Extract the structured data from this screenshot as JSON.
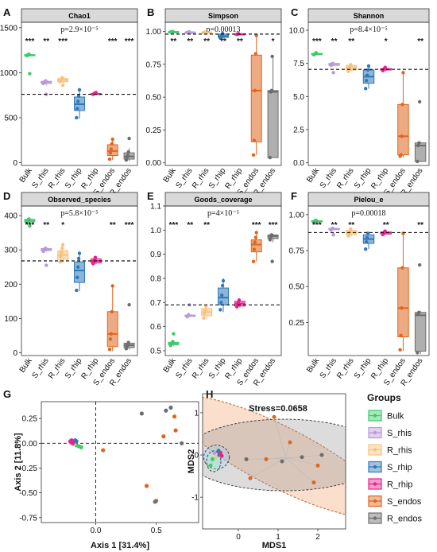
{
  "colors": {
    "Bulk": "#3ec96b",
    "S_rhis": "#b79bd9",
    "R_rhis": "#f8c27e",
    "S_rhip": "#2f78b9",
    "R_rhip": "#e8228b",
    "S_endos": "#e0651e",
    "R_endos": "#6d6d6d"
  },
  "groups": [
    "Bulk",
    "S_rhis",
    "R_rhis",
    "S_rhip",
    "R_rhip",
    "S_endos",
    "R_endos"
  ],
  "legend": {
    "title": "Groups"
  },
  "chart_data": [
    {
      "letter": "A",
      "type": "box",
      "title": "Chao1",
      "pvalue": "p=2.9×10⁻⁵",
      "ylim": [
        -30,
        1560
      ],
      "ticks": [
        0,
        500,
        1000,
        1500
      ],
      "hline": 760,
      "sig": [
        "***",
        "**",
        "***",
        "",
        "",
        "***",
        "***"
      ],
      "boxes": [
        {
          "min": 1180,
          "q1": 1190,
          "median": 1195,
          "q3": 1200,
          "max": 1210,
          "points": [
            1190,
            1195,
            1200,
            1205,
            990
          ]
        },
        {
          "min": 860,
          "q1": 880,
          "median": 895,
          "q3": 905,
          "max": 920,
          "points": [
            880,
            890,
            900,
            910,
            760
          ]
        },
        {
          "min": 880,
          "q1": 900,
          "median": 920,
          "q3": 935,
          "max": 960,
          "points": [
            900,
            915,
            930,
            945,
            860
          ]
        },
        {
          "min": 490,
          "q1": 580,
          "median": 650,
          "q3": 730,
          "max": 820,
          "points": [
            500,
            600,
            680,
            740,
            810
          ]
        },
        {
          "min": 760,
          "q1": 760,
          "median": 765,
          "q3": 770,
          "max": 780,
          "points": [
            760,
            765,
            770,
            775,
            780
          ]
        },
        {
          "min": 30,
          "q1": 80,
          "median": 130,
          "q3": 200,
          "max": 280,
          "points": [
            40,
            110,
            150,
            210,
            260
          ]
        },
        {
          "min": 20,
          "q1": 40,
          "median": 70,
          "q3": 110,
          "max": 160,
          "points": [
            30,
            60,
            80,
            120,
            270
          ]
        }
      ]
    },
    {
      "letter": "B",
      "type": "box",
      "title": "Simpson",
      "pvalue": "p=0.00013",
      "ylim": [
        -0.02,
        1.07
      ],
      "ticks": [
        0.0,
        0.25,
        0.5,
        0.75,
        1.0
      ],
      "hline": 0.98,
      "sig": [
        "**",
        "**",
        "**",
        "**",
        "**",
        "",
        "*"
      ],
      "boxes": [
        {
          "min": 0.995,
          "q1": 0.996,
          "median": 0.997,
          "q3": 0.998,
          "max": 0.999,
          "points": [
            0.996,
            0.997,
            0.998,
            0.999
          ]
        },
        {
          "min": 0.99,
          "q1": 0.992,
          "median": 0.994,
          "q3": 0.995,
          "max": 0.996,
          "points": [
            0.992,
            0.994,
            0.995,
            0.996
          ]
        },
        {
          "min": 0.99,
          "q1": 0.991,
          "median": 0.993,
          "q3": 0.995,
          "max": 0.996,
          "points": [
            0.991,
            0.993,
            0.995
          ]
        },
        {
          "min": 0.94,
          "q1": 0.955,
          "median": 0.965,
          "q3": 0.98,
          "max": 0.99,
          "points": [
            0.95,
            0.96,
            0.97,
            0.985
          ]
        },
        {
          "min": 0.975,
          "q1": 0.978,
          "median": 0.98,
          "q3": 0.982,
          "max": 0.985,
          "points": [
            0.977,
            0.98,
            0.983
          ]
        },
        {
          "min": 0.06,
          "q1": 0.16,
          "median": 0.55,
          "q3": 0.82,
          "max": 0.97,
          "points": [
            0.06,
            0.17,
            0.55,
            0.83,
            0.97
          ]
        },
        {
          "min": 0.04,
          "q1": 0.04,
          "median": 0.54,
          "q3": 0.55,
          "max": 0.81,
          "points": [
            0.04,
            0.54,
            0.55,
            0.81
          ]
        }
      ]
    },
    {
      "letter": "C",
      "type": "box",
      "title": "Shannon",
      "pvalue": "p=8.4×10⁻⁵",
      "ylim": [
        -0.2,
        10.6
      ],
      "ticks": [
        0.0,
        2.5,
        5.0,
        7.5,
        10.0
      ],
      "hline": 7.05,
      "sig": [
        "***",
        "**",
        "**",
        "",
        "*",
        "",
        "**"
      ],
      "boxes": [
        {
          "min": 8.1,
          "q1": 8.15,
          "median": 8.2,
          "q3": 8.25,
          "max": 8.3,
          "points": [
            8.15,
            8.2,
            8.25,
            8.3
          ]
        },
        {
          "min": 7.3,
          "q1": 7.35,
          "median": 7.45,
          "q3": 7.5,
          "max": 7.55,
          "points": [
            7.35,
            7.45,
            7.5,
            6.8
          ]
        },
        {
          "min": 6.9,
          "q1": 7.0,
          "median": 7.2,
          "q3": 7.35,
          "max": 7.5,
          "points": [
            6.9,
            7.1,
            7.25,
            7.4
          ]
        },
        {
          "min": 5.6,
          "q1": 6.0,
          "median": 6.5,
          "q3": 7.0,
          "max": 7.3,
          "points": [
            5.6,
            6.2,
            6.6,
            7.0,
            7.3
          ]
        },
        {
          "min": 6.9,
          "q1": 7.0,
          "median": 7.05,
          "q3": 7.1,
          "max": 7.2,
          "points": [
            6.95,
            7.05,
            7.1,
            7.2
          ]
        },
        {
          "min": 0.4,
          "q1": 0.6,
          "median": 2.0,
          "q3": 4.4,
          "max": 6.8,
          "points": [
            0.5,
            0.6,
            2.0,
            4.4,
            6.8
          ]
        },
        {
          "min": 0.1,
          "q1": 0.1,
          "median": 1.3,
          "q3": 1.5,
          "max": 1.6,
          "points": [
            0.1,
            1.3,
            1.5,
            4.6
          ]
        }
      ]
    },
    {
      "letter": "D",
      "type": "box",
      "title": "Observed_species",
      "pvalue": "p=5.8×10⁻⁵",
      "ylim": [
        -8,
        428
      ],
      "ticks": [
        0,
        100,
        200,
        300,
        400
      ],
      "hline": 268,
      "sig": [
        "***",
        "**",
        "*",
        "",
        "",
        "**",
        "***"
      ],
      "boxes": [
        {
          "min": 378,
          "q1": 382,
          "median": 386,
          "q3": 389,
          "max": 392,
          "points": [
            380,
            385,
            388,
            390,
            370
          ]
        },
        {
          "min": 295,
          "q1": 298,
          "median": 301,
          "q3": 304,
          "max": 306,
          "points": [
            296,
            300,
            303,
            305,
            255
          ]
        },
        {
          "min": 260,
          "q1": 272,
          "median": 285,
          "q3": 298,
          "max": 315,
          "points": [
            265,
            280,
            292,
            305,
            315
          ]
        },
        {
          "min": 180,
          "q1": 205,
          "median": 240,
          "q3": 265,
          "max": 290,
          "points": [
            182,
            220,
            250,
            275,
            290
          ]
        },
        {
          "min": 258,
          "q1": 262,
          "median": 268,
          "q3": 274,
          "max": 280,
          "points": [
            260,
            266,
            272,
            278
          ]
        },
        {
          "min": 5,
          "q1": 18,
          "median": 55,
          "q3": 120,
          "max": 195,
          "points": [
            10,
            40,
            55,
            120,
            195
          ]
        },
        {
          "min": 10,
          "q1": 15,
          "median": 22,
          "q3": 28,
          "max": 32,
          "points": [
            12,
            20,
            25,
            30,
            140
          ]
        }
      ]
    },
    {
      "letter": "E",
      "type": "box",
      "title": "Goods_coverage",
      "pvalue": "p=4×10⁻⁵",
      "ylim": [
        0.48,
        1.1
      ],
      "ticks": [
        0.5,
        0.6,
        0.7,
        0.8,
        0.9,
        1.0,
        1.1
      ],
      "hline": 0.69,
      "sig": [
        "***",
        "**",
        "**",
        "",
        "",
        "***",
        "***"
      ],
      "boxes": [
        {
          "min": 0.52,
          "q1": 0.525,
          "median": 0.53,
          "q3": 0.535,
          "max": 0.54,
          "points": [
            0.522,
            0.528,
            0.533,
            0.538,
            0.57
          ]
        },
        {
          "min": 0.64,
          "q1": 0.642,
          "median": 0.645,
          "q3": 0.648,
          "max": 0.65,
          "points": [
            0.641,
            0.645,
            0.649,
            0.69
          ]
        },
        {
          "min": 0.63,
          "q1": 0.645,
          "median": 0.66,
          "q3": 0.675,
          "max": 0.69,
          "points": [
            0.635,
            0.655,
            0.67,
            0.685
          ]
        },
        {
          "min": 0.66,
          "q1": 0.69,
          "median": 0.72,
          "q3": 0.76,
          "max": 0.8,
          "points": [
            0.67,
            0.7,
            0.73,
            0.77,
            0.79
          ]
        },
        {
          "min": 0.68,
          "q1": 0.685,
          "median": 0.695,
          "q3": 0.705,
          "max": 0.715,
          "points": [
            0.682,
            0.69,
            0.7,
            0.71
          ]
        },
        {
          "min": 0.87,
          "q1": 0.91,
          "median": 0.94,
          "q3": 0.96,
          "max": 0.99,
          "points": [
            0.87,
            0.92,
            0.95,
            0.97,
            0.99
          ]
        },
        {
          "min": 0.95,
          "q1": 0.965,
          "median": 0.975,
          "q3": 0.98,
          "max": 0.985,
          "points": [
            0.96,
            0.97,
            0.98,
            0.87
          ]
        }
      ]
    },
    {
      "letter": "F",
      "type": "box",
      "title": "Pielou_e",
      "pvalue": "p=0.00018",
      "ylim": [
        0.02,
        1.06
      ],
      "ticks": [
        0.25,
        0.5,
        0.75,
        1.0
      ],
      "hline": 0.875,
      "sig": [
        "***",
        "**",
        "**",
        "",
        "**",
        "",
        "**"
      ],
      "boxes": [
        {
          "min": 0.95,
          "q1": 0.952,
          "median": 0.955,
          "q3": 0.958,
          "max": 0.96,
          "points": [
            0.951,
            0.955,
            0.958,
            0.96
          ]
        },
        {
          "min": 0.89,
          "q1": 0.895,
          "median": 0.9,
          "q3": 0.905,
          "max": 0.91,
          "points": [
            0.893,
            0.9,
            0.905,
            0.86
          ]
        },
        {
          "min": 0.85,
          "q1": 0.86,
          "median": 0.875,
          "q3": 0.89,
          "max": 0.9,
          "points": [
            0.852,
            0.87,
            0.885,
            0.9
          ]
        },
        {
          "min": 0.76,
          "q1": 0.8,
          "median": 0.83,
          "q3": 0.86,
          "max": 0.88,
          "points": [
            0.76,
            0.81,
            0.84,
            0.87
          ]
        },
        {
          "min": 0.86,
          "q1": 0.865,
          "median": 0.875,
          "q3": 0.88,
          "max": 0.885,
          "points": [
            0.862,
            0.872,
            0.88,
            0.885
          ]
        },
        {
          "min": 0.05,
          "q1": 0.15,
          "median": 0.35,
          "q3": 0.63,
          "max": 0.87,
          "points": [
            0.06,
            0.16,
            0.35,
            0.63,
            0.87
          ]
        },
        {
          "min": 0.03,
          "q1": 0.05,
          "median": 0.3,
          "q3": 0.32,
          "max": 0.33,
          "points": [
            0.04,
            0.31,
            0.32,
            0.65
          ]
        }
      ]
    },
    {
      "letter": "G",
      "type": "scatter",
      "xlabel": "Axis 1 [31.4%]",
      "ylabel": "Axis 2 [11.8%]",
      "xlim": [
        -0.45,
        0.85
      ],
      "ylim": [
        -0.8,
        0.42
      ],
      "xticks": [
        0.0,
        0.5
      ],
      "yticks": [
        -0.75,
        -0.5,
        -0.25,
        0.0,
        0.25
      ],
      "points": [
        {
          "group": "Bulk",
          "x": -0.16,
          "y": -0.02
        },
        {
          "group": "Bulk",
          "x": -0.14,
          "y": -0.03
        },
        {
          "group": "Bulk",
          "x": -0.12,
          "y": -0.04
        },
        {
          "group": "S_rhis",
          "x": -0.21,
          "y": 0.01
        },
        {
          "group": "S_rhis",
          "x": -0.2,
          "y": 0.0
        },
        {
          "group": "R_rhis",
          "x": -0.19,
          "y": 0.02
        },
        {
          "group": "R_rhis",
          "x": -0.18,
          "y": -0.01
        },
        {
          "group": "S_rhip",
          "x": -0.17,
          "y": 0.03
        },
        {
          "group": "S_rhip",
          "x": -0.16,
          "y": 0.02
        },
        {
          "group": "R_rhip",
          "x": -0.21,
          "y": 0.02
        },
        {
          "group": "R_rhip",
          "x": -0.19,
          "y": 0.0
        },
        {
          "group": "R_rhip",
          "x": -0.2,
          "y": 0.03
        },
        {
          "group": "S_endos",
          "x": 0.06,
          "y": -0.07
        },
        {
          "group": "S_endos",
          "x": 0.42,
          "y": -0.43
        },
        {
          "group": "S_endos",
          "x": 0.5,
          "y": -0.58
        },
        {
          "group": "S_endos",
          "x": 0.65,
          "y": 0.27
        },
        {
          "group": "S_endos",
          "x": 0.66,
          "y": 0.13
        },
        {
          "group": "S_endos",
          "x": 0.56,
          "y": 0.07
        },
        {
          "group": "R_endos",
          "x": 0.38,
          "y": 0.3
        },
        {
          "group": "R_endos",
          "x": 0.58,
          "y": 0.33
        },
        {
          "group": "R_endos",
          "x": 0.62,
          "y": 0.36
        },
        {
          "group": "R_endos",
          "x": 0.71,
          "y": 0.0
        },
        {
          "group": "R_endos",
          "x": 0.49,
          "y": -0.59
        }
      ]
    },
    {
      "letter": "H",
      "type": "scatter",
      "title": "Stress=0.0658",
      "xlabel": "MDS1",
      "ylabel": "MDS2",
      "xlim": [
        -0.9,
        2.7
      ],
      "ylim": [
        -1.75,
        1.45
      ],
      "xticks": [
        0,
        1,
        2
      ],
      "yticks": [
        -1,
        0,
        1
      ],
      "points": [
        {
          "group": "Bulk",
          "x": -0.7,
          "y": -0.25
        },
        {
          "group": "Bulk",
          "x": -0.65,
          "y": -0.1
        },
        {
          "group": "S_rhis",
          "x": -0.6,
          "y": 0.05
        },
        {
          "group": "R_rhis",
          "x": -0.55,
          "y": -0.05
        },
        {
          "group": "S_rhip",
          "x": -0.5,
          "y": 0.1
        },
        {
          "group": "S_rhip",
          "x": -0.48,
          "y": 0.0
        },
        {
          "group": "R_rhip",
          "x": -0.45,
          "y": 0.05
        },
        {
          "group": "R_rhip",
          "x": -0.42,
          "y": -0.02
        },
        {
          "group": "S_endos",
          "x": 0.9,
          "y": 0.9
        },
        {
          "group": "S_endos",
          "x": 1.3,
          "y": 0.3
        },
        {
          "group": "S_endos",
          "x": 0.7,
          "y": -0.1
        },
        {
          "group": "S_endos",
          "x": 2.0,
          "y": -0.25
        },
        {
          "group": "S_endos",
          "x": 1.9,
          "y": -0.65
        },
        {
          "group": "S_endos",
          "x": 0.3,
          "y": -0.55
        },
        {
          "group": "R_endos",
          "x": 0.2,
          "y": -0.1
        },
        {
          "group": "R_endos",
          "x": 1.1,
          "y": -0.15
        },
        {
          "group": "R_endos",
          "x": 1.6,
          "y": -0.05
        },
        {
          "group": "R_endos",
          "x": 2.1,
          "y": 0.0
        }
      ]
    }
  ]
}
